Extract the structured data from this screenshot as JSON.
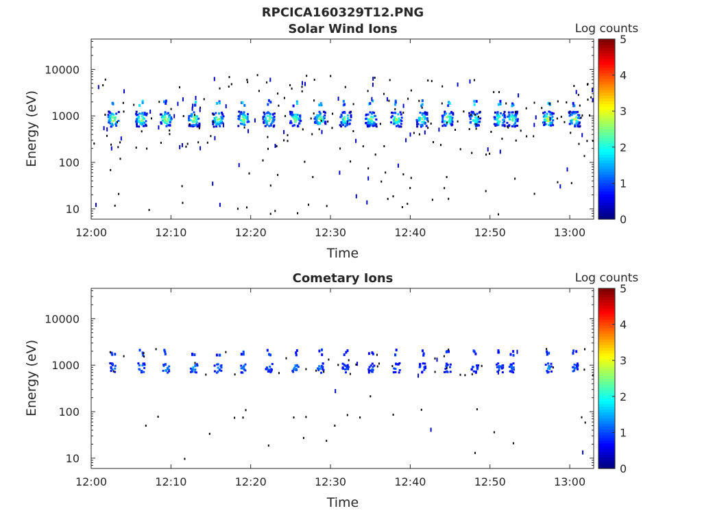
{
  "figure_title": "RPCICA160329T12.PNG",
  "chart_data": [
    {
      "type": "heatmap",
      "title": "Solar Wind Ions",
      "xlabel": "Time",
      "ylabel": "Energy (eV)",
      "x_ticks": [
        "12:00",
        "12:10",
        "12:20",
        "12:30",
        "12:40",
        "12:50",
        "13:00"
      ],
      "y_ticks": [
        "10",
        "100",
        "1000",
        "10000"
      ],
      "y_scale": "log",
      "xlim": [
        "12:00",
        "13:03"
      ],
      "ylim": [
        6,
        45000
      ],
      "colorbar": {
        "label": "Log counts",
        "range": [
          0,
          5
        ],
        "ticks": [
          "0",
          "1",
          "2",
          "3",
          "4",
          "5"
        ]
      },
      "sweeps": [
        {
          "t": 2.8,
          "peak": 3.2
        },
        {
          "t": 6.3,
          "peak": 3.0
        },
        {
          "t": 9.4,
          "peak": 3.3
        },
        {
          "t": 12.9,
          "peak": 3.0
        },
        {
          "t": 15.9,
          "peak": 3.0
        },
        {
          "t": 19.1,
          "peak": 2.9
        },
        {
          "t": 22.3,
          "peak": 3.0
        },
        {
          "t": 25.6,
          "peak": 2.9
        },
        {
          "t": 28.7,
          "peak": 2.9
        },
        {
          "t": 31.9,
          "peak": 2.8
        },
        {
          "t": 35.1,
          "peak": 2.8
        },
        {
          "t": 38.3,
          "peak": 2.9
        },
        {
          "t": 41.5,
          "peak": 2.8
        },
        {
          "t": 44.7,
          "peak": 3.2
        },
        {
          "t": 48.1,
          "peak": 2.6
        },
        {
          "t": 51.2,
          "peak": 3.0
        },
        {
          "t": 52.8,
          "peak": 2.8
        },
        {
          "t": 57.3,
          "peak": 3.4
        },
        {
          "t": 60.6,
          "peak": 3.1
        }
      ],
      "center_energy_eV": 850,
      "scatter_count": 260
    },
    {
      "type": "heatmap",
      "title": "Cometary Ions",
      "xlabel": "Time",
      "ylabel": "Energy (eV)",
      "x_ticks": [
        "12:00",
        "12:10",
        "12:20",
        "12:30",
        "12:40",
        "12:50",
        "13:00"
      ],
      "y_ticks": [
        "10",
        "100",
        "1000",
        "10000"
      ],
      "y_scale": "log",
      "xlim": [
        "12:00",
        "13:03"
      ],
      "ylim": [
        6,
        45000
      ],
      "colorbar": {
        "label": "Log counts",
        "range": [
          0,
          5
        ],
        "ticks": [
          "0",
          "1",
          "2",
          "3",
          "4",
          "5"
        ]
      },
      "sweeps": [
        {
          "t": 2.8,
          "peak": 1.4
        },
        {
          "t": 6.3,
          "peak": 1.6
        },
        {
          "t": 9.4,
          "peak": 1.6
        },
        {
          "t": 12.9,
          "peak": 1.5
        },
        {
          "t": 15.9,
          "peak": 1.5
        },
        {
          "t": 19.1,
          "peak": 1.4
        },
        {
          "t": 22.3,
          "peak": 1.3
        },
        {
          "t": 25.6,
          "peak": 1.4
        },
        {
          "t": 28.7,
          "peak": 1.4
        },
        {
          "t": 31.9,
          "peak": 1.2
        },
        {
          "t": 35.1,
          "peak": 1.2
        },
        {
          "t": 38.3,
          "peak": 1.3
        },
        {
          "t": 41.5,
          "peak": 1.2
        },
        {
          "t": 44.7,
          "peak": 1.3
        },
        {
          "t": 48.1,
          "peak": 1.1
        },
        {
          "t": 51.2,
          "peak": 1.2
        },
        {
          "t": 52.8,
          "peak": 1.2
        },
        {
          "t": 57.3,
          "peak": 1.4
        },
        {
          "t": 60.6,
          "peak": 1.3
        }
      ],
      "center_energy_eV": 870,
      "scatter_count": 70
    }
  ]
}
